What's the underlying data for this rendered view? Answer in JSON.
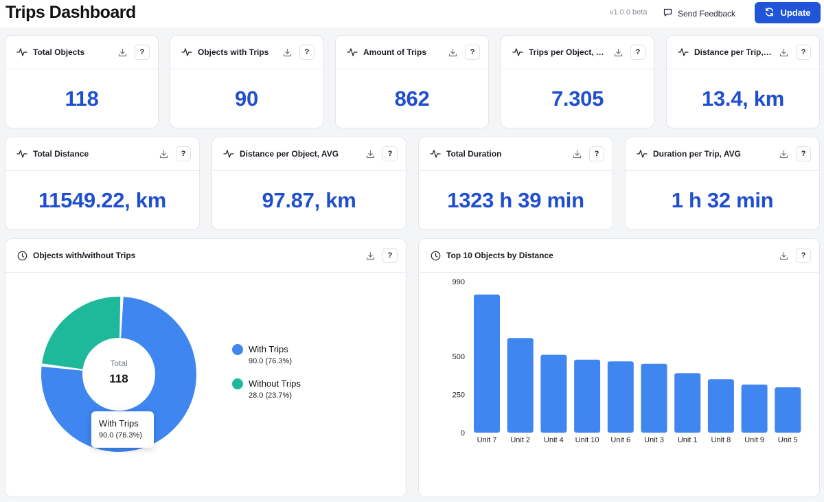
{
  "header": {
    "title": "Trips Dashboard",
    "version": "v1.0.0 beta",
    "feedback_label": "Send Feedback",
    "update_label": "Update"
  },
  "colors": {
    "accent": "#1f55d6",
    "value_blue": "#1f4fcf",
    "bar_blue": "#3f86f0",
    "teal": "#1eb89b"
  },
  "kpis_row1": [
    {
      "label": "Total Objects",
      "value": "118"
    },
    {
      "label": "Objects with Trips",
      "value": "90"
    },
    {
      "label": "Amount of Trips",
      "value": "862"
    },
    {
      "label": "Trips per Object, A...",
      "value": "7.305"
    },
    {
      "label": "Distance per Trip, ...",
      "value": "13.4, km"
    }
  ],
  "kpis_row2": [
    {
      "label": "Total Distance",
      "value": "11549.22, km"
    },
    {
      "label": "Distance per Object, AVG",
      "value": "97.87, km"
    },
    {
      "label": "Total Duration",
      "value": "1323 h 39 min"
    },
    {
      "label": "Duration per Trip, AVG",
      "value": "1 h 32 min"
    }
  ],
  "help_label": "?",
  "donut": {
    "title": "Objects with/without Trips",
    "total_label": "Total",
    "total_value": "118",
    "segments": [
      {
        "name": "With Trips",
        "value": 90.0,
        "display": "90.0 (76.3%)",
        "color": "#3f86f0"
      },
      {
        "name": "Without Trips",
        "value": 28.0,
        "display": "28.0 (23.7%)",
        "color": "#1eb89b"
      }
    ],
    "tooltip": {
      "title": "With Trips",
      "value": "90.0 (76.3%)"
    }
  },
  "bars": {
    "title": "Top 10 Objects by Distance"
  },
  "chart_data": {
    "type": "bar",
    "title": "Top 10 Objects by Distance",
    "categories": [
      "Unit 7",
      "Unit 2",
      "Unit 4",
      "Unit 10",
      "Unit 6",
      "Unit 3",
      "Unit 1",
      "Unit 8",
      "Unit 9",
      "Unit 5"
    ],
    "values": [
      905,
      620,
      510,
      478,
      467,
      451,
      390,
      350,
      315,
      297
    ],
    "y_ticks": [
      0,
      250,
      500,
      990
    ],
    "ylim": [
      0,
      990
    ],
    "xlabel": "",
    "ylabel": "",
    "grid": false
  }
}
